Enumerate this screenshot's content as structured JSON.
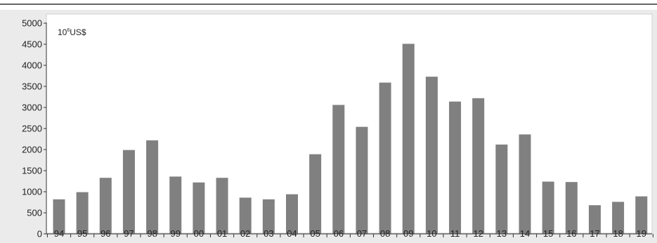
{
  "chart_data": {
    "type": "bar",
    "unit_label": {
      "base": "10",
      "exponent": "6",
      "unit": "US$"
    },
    "categories": [
      "94",
      "95",
      "96",
      "97",
      "98",
      "99",
      "00",
      "01",
      "02",
      "03",
      "04",
      "05",
      "06",
      "07",
      "08",
      "09",
      "10",
      "11",
      "12",
      "13",
      "14",
      "15",
      "16",
      "17",
      "18",
      "19"
    ],
    "values": [
      820,
      990,
      1330,
      1990,
      2220,
      1360,
      1220,
      1330,
      860,
      820,
      940,
      1890,
      3060,
      2540,
      3590,
      4510,
      3730,
      3140,
      3220,
      2120,
      2360,
      1240,
      1230,
      680,
      760,
      890
    ],
    "yticks": [
      "0",
      "500",
      "1000",
      "1500",
      "2000",
      "2500",
      "3000",
      "3500",
      "4000",
      "4500",
      "5000"
    ],
    "ylim": [
      0,
      5000
    ],
    "grid": false,
    "legend": "none",
    "colors": {
      "bar": "#808080",
      "plot_background": "#ebebeb",
      "plot_area": "#ffffff",
      "axis": "#333333",
      "frame_line": "#333333"
    }
  }
}
